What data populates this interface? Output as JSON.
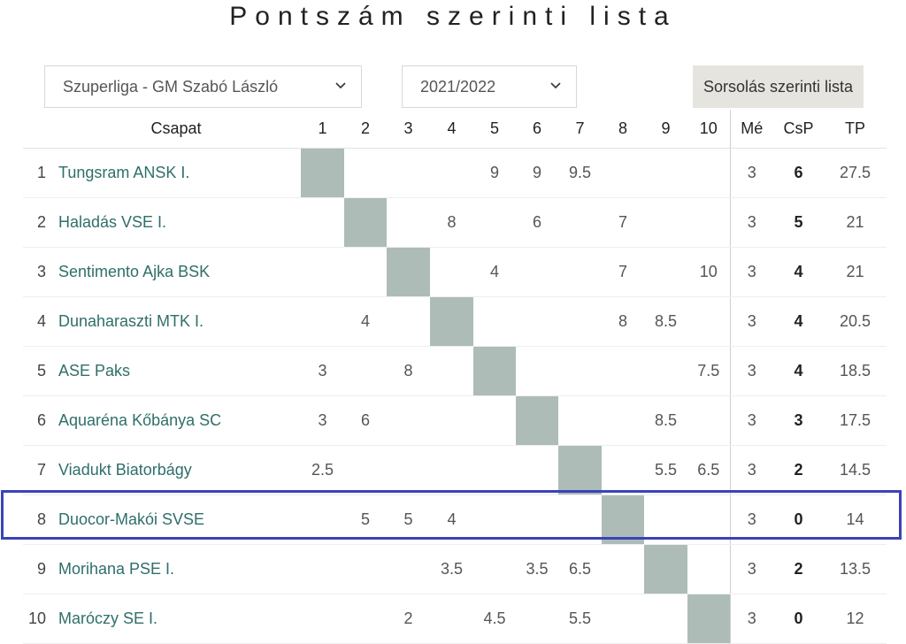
{
  "title": "Pontszám szerinti lista",
  "controls": {
    "league_select": "Szuperliga - GM Szabó László",
    "season_select": "2021/2022",
    "draw_list_button": "Sorsolás szerinti lista"
  },
  "table": {
    "headers": {
      "team": "Csapat",
      "rounds": [
        "1",
        "2",
        "3",
        "4",
        "5",
        "6",
        "7",
        "8",
        "9",
        "10"
      ],
      "me": "Mé",
      "csp": "CsP",
      "tp": "TP"
    },
    "rows": [
      {
        "pos": "1",
        "team": "Tungsram ANSK I.",
        "scores": [
          "",
          "",
          "",
          "",
          "9",
          "9",
          "9.5",
          "",
          "",
          ""
        ],
        "me": "3",
        "csp": "6",
        "tp": "27.5"
      },
      {
        "pos": "2",
        "team": "Haladás VSE I.",
        "scores": [
          "",
          "",
          "",
          "8",
          "",
          "6",
          "",
          "7",
          "",
          ""
        ],
        "me": "3",
        "csp": "5",
        "tp": "21"
      },
      {
        "pos": "3",
        "team": "Sentimento Ajka BSK",
        "scores": [
          "",
          "",
          "",
          "",
          "4",
          "",
          "",
          "7",
          "",
          "10"
        ],
        "me": "3",
        "csp": "4",
        "tp": "21"
      },
      {
        "pos": "4",
        "team": "Dunaharaszti MTK I.",
        "scores": [
          "",
          "4",
          "",
          "",
          "",
          "",
          "",
          "8",
          "8.5",
          ""
        ],
        "me": "3",
        "csp": "4",
        "tp": "20.5"
      },
      {
        "pos": "5",
        "team": "ASE Paks",
        "scores": [
          "3",
          "",
          "8",
          "",
          "",
          "",
          "",
          "",
          "",
          "7.5"
        ],
        "me": "3",
        "csp": "4",
        "tp": "18.5"
      },
      {
        "pos": "6",
        "team": "Aquaréna Kőbánya SC",
        "scores": [
          "3",
          "6",
          "",
          "",
          "",
          "",
          "",
          "",
          "8.5",
          ""
        ],
        "me": "3",
        "csp": "3",
        "tp": "17.5"
      },
      {
        "pos": "7",
        "team": "Viadukt Biatorbágy",
        "scores": [
          "2.5",
          "",
          "",
          "",
          "",
          "",
          "",
          "",
          "5.5",
          "6.5"
        ],
        "me": "3",
        "csp": "2",
        "tp": "14.5"
      },
      {
        "pos": "8",
        "team": "Duocor-Makói SVSE",
        "scores": [
          "",
          "5",
          "5",
          "4",
          "",
          "",
          "",
          "",
          "",
          ""
        ],
        "me": "3",
        "csp": "0",
        "tp": "14"
      },
      {
        "pos": "9",
        "team": "Morihana PSE I.",
        "scores": [
          "",
          "",
          "",
          "3.5",
          "",
          "3.5",
          "6.5",
          "",
          "",
          ""
        ],
        "me": "3",
        "csp": "2",
        "tp": "13.5"
      },
      {
        "pos": "10",
        "team": "Maróczy SE I.",
        "scores": [
          "",
          "",
          "2",
          "",
          "4.5",
          "",
          "5.5",
          "",
          "",
          ""
        ],
        "me": "3",
        "csp": "0",
        "tp": "12"
      }
    ]
  }
}
